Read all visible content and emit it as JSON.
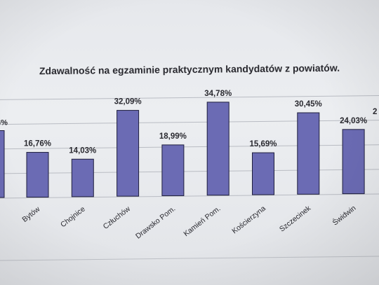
{
  "chart_data": {
    "type": "bar",
    "title": "Zdawalność na egzaminie praktycznym kandydatów z powiatów.",
    "xlabel": "",
    "ylabel": "",
    "ylim": [
      0,
      40
    ],
    "grid": true,
    "categories": [
      "Bytów",
      "Chojnice",
      "Człuchów",
      "Drawsko Pom.",
      "Kamień Pom.",
      "Kościerzyna",
      "Szczecinek",
      "Świdwin"
    ],
    "values": [
      16.76,
      14.03,
      32.09,
      18.99,
      34.78,
      15.69,
      30.45,
      24.03
    ],
    "value_labels": [
      "16,76%",
      "14,03%",
      "32,09%",
      "18,99%",
      "34,78%",
      "15,69%",
      "30,45%",
      "24,03%"
    ],
    "cut_left_label": "6%",
    "cut_right_label": "2",
    "bar_color": "#6b6bb4",
    "bar_edge_color": "#1e1e3c"
  }
}
